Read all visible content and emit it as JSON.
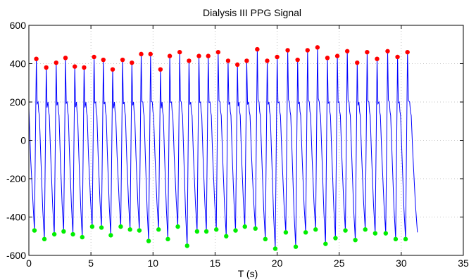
{
  "chart_data": {
    "type": "line",
    "title": "Dialysis III PPG Signal",
    "xlabel": "T (s)",
    "ylabel": "",
    "xlim": [
      0,
      35
    ],
    "ylim": [
      -600,
      600
    ],
    "xticks": [
      0,
      5,
      10,
      15,
      20,
      25,
      30,
      35
    ],
    "yticks": [
      600,
      400,
      200,
      0,
      -200,
      -400,
      -600
    ],
    "grid": true,
    "signal_end_time": 31.3,
    "signal_end_value": -480,
    "series": [
      {
        "role": "signal",
        "color": "#0000ff",
        "note_values": "PPG waveform connecting troughs and peaks"
      },
      {
        "role": "peaks",
        "color": "#ff0000",
        "x": [
          0.6,
          1.4,
          2.2,
          2.95,
          3.7,
          4.45,
          5.25,
          6.0,
          6.75,
          7.55,
          8.3,
          9.05,
          9.8,
          10.6,
          11.35,
          12.15,
          12.9,
          13.7,
          14.45,
          15.25,
          16.05,
          16.8,
          17.55,
          18.4,
          19.2,
          20.0,
          20.85,
          21.65,
          22.45,
          23.25,
          24.05,
          24.85,
          25.65,
          26.45,
          27.25,
          28.05,
          28.9,
          29.7,
          30.5
        ],
        "y": [
          425,
          380,
          405,
          430,
          385,
          380,
          435,
          420,
          370,
          420,
          405,
          450,
          450,
          370,
          440,
          460,
          415,
          440,
          440,
          460,
          415,
          395,
          415,
          475,
          415,
          435,
          470,
          420,
          470,
          485,
          430,
          440,
          465,
          405,
          460,
          425,
          465,
          435,
          460
        ]
      },
      {
        "role": "troughs",
        "color": "#00ee00",
        "x": [
          0.45,
          1.25,
          2.05,
          2.8,
          3.55,
          4.3,
          5.1,
          5.85,
          6.6,
          7.4,
          8.15,
          8.9,
          9.65,
          10.45,
          11.2,
          12.0,
          12.75,
          13.55,
          14.3,
          15.1,
          15.9,
          16.65,
          17.4,
          18.25,
          19.05,
          19.85,
          20.7,
          21.5,
          22.3,
          23.1,
          23.9,
          24.7,
          25.5,
          26.3,
          27.1,
          27.9,
          28.75,
          29.55,
          30.35
        ],
        "y": [
          -470,
          -515,
          -490,
          -475,
          -490,
          -505,
          -450,
          -455,
          -495,
          -450,
          -465,
          -470,
          -525,
          -465,
          -515,
          -450,
          -550,
          -475,
          -475,
          -465,
          -500,
          -470,
          -450,
          -460,
          -515,
          -565,
          -480,
          -555,
          -480,
          -465,
          -540,
          -510,
          -470,
          -520,
          -465,
          -485,
          -485,
          -515,
          -515
        ]
      }
    ]
  }
}
